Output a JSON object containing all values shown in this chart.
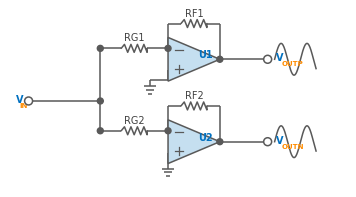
{
  "bg_color": "#ffffff",
  "line_color": "#595959",
  "opamp_fill": "#c5dff0",
  "opamp_stroke": "#595959",
  "label_color_blue": "#0070c0",
  "label_color_orange": "#ff8c00",
  "label_color_dark": "#404040",
  "rf1_label": "RF1",
  "rf2_label": "RF2",
  "rg1_label": "RG1",
  "rg2_label": "RG2",
  "u1_label": "U1",
  "u2_label": "U2",
  "voutp_v": "V",
  "voutp_sub": "OUTP",
  "voutn_v": "V",
  "voutn_sub": "OUTN",
  "vin_v": "V",
  "vin_sub": "IN",
  "figw": 3.56,
  "figh": 1.97,
  "dpi": 100
}
